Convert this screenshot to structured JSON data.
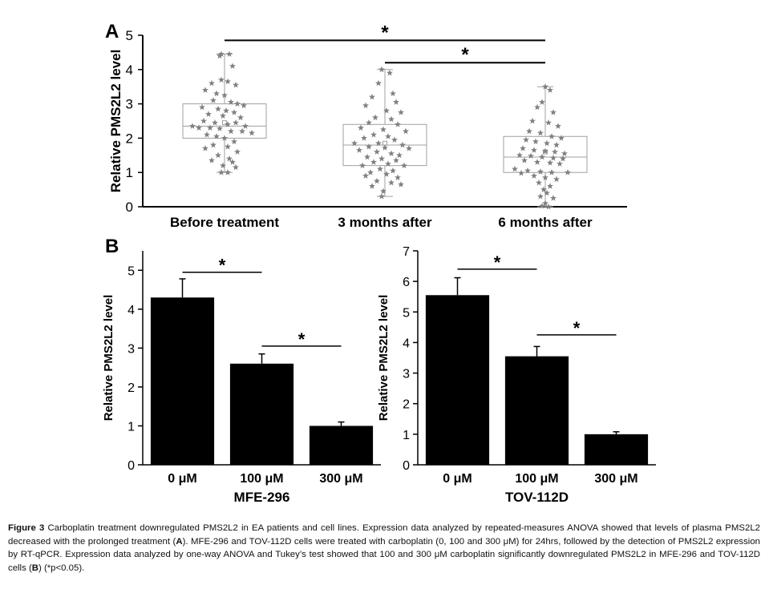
{
  "figure": {
    "caption_label": "Figure 3",
    "caption_parts": [
      "Carboplatin treatment downregulated PMS2L2 in EA patients and cell lines. Expression data analyzed by repeated-measures ANOVA showed that levels of plasma PMS2L2 decreased with the prolonged treatment (",
      "A",
      "). MFE-296 and TOV-112D cells were treated with carboplatin (0, 100 and 300 μM) for 24hrs, followed by the detection of PMS2L2 expression by RT-qPCR. Expression data analyzed by one-way ANOVA and Tukey’s test showed that 100 and 300 μM carboplatin significantly downregulated PMS2L2 in MFE-296 and TOV-112D cells (",
      "B",
      ") (*p<0.05)."
    ]
  },
  "chart_data": [
    {
      "panel": "A",
      "type": "box",
      "ylabel": "Relative PMS2L2 level",
      "ylim": [
        0,
        5
      ],
      "yticks": [
        0,
        1,
        2,
        3,
        4,
        5
      ],
      "categories": [
        "Before treatment",
        "3 months after",
        "6 months after"
      ],
      "boxes": [
        {
          "min": 1.0,
          "q1": 2.0,
          "median": 2.35,
          "q3": 3.0,
          "max": 4.45,
          "mean": 2.45
        },
        {
          "min": 0.3,
          "q1": 1.2,
          "median": 1.8,
          "q3": 2.4,
          "max": 4.0,
          "mean": 1.85
        },
        {
          "min": 0.0,
          "q1": 1.0,
          "median": 1.45,
          "q3": 2.05,
          "max": 3.5,
          "mean": 1.6
        }
      ],
      "points": [
        [
          [
            0.98,
            4.45
          ],
          [
            0.97,
            4.4
          ],
          [
            1.03,
            4.45
          ],
          [
            1.05,
            4.1
          ],
          [
            0.98,
            3.7
          ],
          [
            0.92,
            3.6
          ],
          [
            1.02,
            3.65
          ],
          [
            1.07,
            3.55
          ],
          [
            0.88,
            3.4
          ],
          [
            0.95,
            3.3
          ],
          [
            1.0,
            3.25
          ],
          [
            0.93,
            3.1
          ],
          [
            1.04,
            3.05
          ],
          [
            1.08,
            3.0
          ],
          [
            1.12,
            2.95
          ],
          [
            0.86,
            2.9
          ],
          [
            0.96,
            2.85
          ],
          [
            1.01,
            2.8
          ],
          [
            1.06,
            2.75
          ],
          [
            0.9,
            2.7
          ],
          [
            0.99,
            2.65
          ],
          [
            1.1,
            2.6
          ],
          [
            0.87,
            2.5
          ],
          [
            0.94,
            2.45
          ],
          [
            1.02,
            2.4
          ],
          [
            1.07,
            2.45
          ],
          [
            1.13,
            2.35
          ],
          [
            0.8,
            2.35
          ],
          [
            0.84,
            2.3
          ],
          [
            0.91,
            2.3
          ],
          [
            0.97,
            2.28
          ],
          [
            1.04,
            2.2
          ],
          [
            1.11,
            2.2
          ],
          [
            1.17,
            2.15
          ],
          [
            0.89,
            2.1
          ],
          [
            0.95,
            2.05
          ],
          [
            1.0,
            2.0
          ],
          [
            1.06,
            1.9
          ],
          [
            0.93,
            1.8
          ],
          [
            1.02,
            1.75
          ],
          [
            0.88,
            1.7
          ],
          [
            1.08,
            1.6
          ],
          [
            0.96,
            1.5
          ],
          [
            1.03,
            1.4
          ],
          [
            0.92,
            1.35
          ],
          [
            1.05,
            1.3
          ],
          [
            0.99,
            1.2
          ],
          [
            1.07,
            1.15
          ],
          [
            0.98,
            1.0
          ],
          [
            1.02,
            1.0
          ]
        ],
        [
          [
            1.98,
            4.0
          ],
          [
            2.03,
            3.9
          ],
          [
            1.96,
            3.6
          ],
          [
            2.05,
            3.3
          ],
          [
            1.92,
            3.2
          ],
          [
            2.07,
            3.05
          ],
          [
            1.88,
            2.95
          ],
          [
            2.01,
            2.8
          ],
          [
            2.1,
            2.75
          ],
          [
            1.94,
            2.6
          ],
          [
            2.04,
            2.55
          ],
          [
            1.9,
            2.45
          ],
          [
            2.08,
            2.4
          ],
          [
            1.85,
            2.3
          ],
          [
            1.99,
            2.25
          ],
          [
            2.13,
            2.2
          ],
          [
            1.93,
            2.1
          ],
          [
            2.02,
            2.05
          ],
          [
            1.87,
            2.0
          ],
          [
            2.06,
            1.95
          ],
          [
            1.81,
            1.85
          ],
          [
            1.96,
            1.85
          ],
          [
            2.11,
            1.8
          ],
          [
            1.9,
            1.75
          ],
          [
            2.0,
            1.72
          ],
          [
            2.15,
            1.7
          ],
          [
            1.84,
            1.65
          ],
          [
            1.95,
            1.6
          ],
          [
            2.04,
            1.55
          ],
          [
            2.09,
            1.5
          ],
          [
            1.89,
            1.45
          ],
          [
            1.98,
            1.4
          ],
          [
            2.07,
            1.35
          ],
          [
            1.93,
            1.3
          ],
          [
            2.02,
            1.25
          ],
          [
            1.86,
            1.2
          ],
          [
            2.12,
            1.2
          ],
          [
            1.97,
            1.1
          ],
          [
            2.05,
            1.05
          ],
          [
            1.91,
            1.0
          ],
          [
            2.01,
            0.95
          ],
          [
            1.88,
            0.9
          ],
          [
            2.08,
            0.85
          ],
          [
            1.95,
            0.75
          ],
          [
            2.04,
            0.7
          ],
          [
            1.92,
            0.6
          ],
          [
            2.1,
            0.65
          ],
          [
            1.99,
            0.45
          ],
          [
            1.98,
            0.3
          ]
        ],
        [
          [
            3.0,
            3.5
          ],
          [
            3.03,
            3.4
          ],
          [
            2.98,
            3.05
          ],
          [
            2.95,
            2.9
          ],
          [
            3.05,
            2.75
          ],
          [
            2.92,
            2.5
          ],
          [
            3.02,
            2.45
          ],
          [
            3.08,
            2.35
          ],
          [
            2.9,
            2.2
          ],
          [
            2.97,
            2.15
          ],
          [
            3.04,
            2.05
          ],
          [
            3.1,
            2.0
          ],
          [
            2.88,
            1.95
          ],
          [
            2.94,
            1.9
          ],
          [
            3.01,
            1.85
          ],
          [
            3.07,
            1.8
          ],
          [
            2.86,
            1.7
          ],
          [
            2.93,
            1.65
          ],
          [
            3.0,
            1.62
          ],
          [
            3.06,
            1.6
          ],
          [
            3.12,
            1.55
          ],
          [
            2.84,
            1.5
          ],
          [
            2.91,
            1.48
          ],
          [
            2.98,
            1.45
          ],
          [
            3.05,
            1.42
          ],
          [
            3.11,
            1.4
          ],
          [
            2.87,
            1.35
          ],
          [
            2.95,
            1.3
          ],
          [
            3.03,
            1.28
          ],
          [
            3.09,
            1.25
          ],
          [
            2.81,
            1.1
          ],
          [
            2.89,
            1.05
          ],
          [
            2.97,
            1.02
          ],
          [
            3.04,
            1.0
          ],
          [
            3.14,
            1.0
          ],
          [
            2.85,
            0.98
          ],
          [
            2.93,
            0.9
          ],
          [
            3.0,
            0.85
          ],
          [
            3.07,
            0.8
          ],
          [
            2.96,
            0.7
          ],
          [
            3.03,
            0.6
          ],
          [
            2.99,
            0.5
          ],
          [
            3.01,
            0.4
          ],
          [
            2.97,
            0.3
          ],
          [
            3.05,
            0.25
          ],
          [
            3.0,
            0.1
          ],
          [
            2.98,
            0.02
          ],
          [
            3.02,
            0.0
          ]
        ]
      ],
      "significance": [
        {
          "from": 0,
          "to": 2,
          "y": 4.85,
          "label": "*"
        },
        {
          "from": 1,
          "to": 2,
          "y": 4.2,
          "label": "*"
        }
      ],
      "colors": {
        "points": "#808080",
        "box": "#a0a0a0",
        "axis": "#000000"
      }
    },
    {
      "panel": "B",
      "type": "bar",
      "title": "MFE-296",
      "ylabel": "Relative PMS2L2 level",
      "ylim": [
        0,
        5.5
      ],
      "yticks": [
        0,
        1,
        2,
        3,
        4,
        5
      ],
      "categories": [
        "0 μM",
        "100 μM",
        "300 μM"
      ],
      "values": [
        4.3,
        2.6,
        1.0
      ],
      "errors": [
        0.48,
        0.25,
        0.1
      ],
      "significance": [
        {
          "from": 0,
          "to": 1,
          "y": 4.95,
          "label": "*"
        },
        {
          "from": 1,
          "to": 2,
          "y": 3.05,
          "label": "*"
        }
      ],
      "colors": {
        "bar": "#000000"
      }
    },
    {
      "panel": "B",
      "type": "bar",
      "title": "TOV-112D",
      "ylabel": "Relative PMS2L2 level",
      "ylim": [
        0,
        7
      ],
      "yticks": [
        0,
        1,
        2,
        3,
        4,
        5,
        6,
        7
      ],
      "categories": [
        "0 μM",
        "100 μM",
        "300 μM"
      ],
      "values": [
        5.55,
        3.55,
        1.0
      ],
      "errors": [
        0.57,
        0.32,
        0.08
      ],
      "significance": [
        {
          "from": 0,
          "to": 1,
          "y": 6.4,
          "label": "*"
        },
        {
          "from": 1,
          "to": 2,
          "y": 4.25,
          "label": "*"
        }
      ],
      "colors": {
        "bar": "#000000"
      }
    }
  ]
}
